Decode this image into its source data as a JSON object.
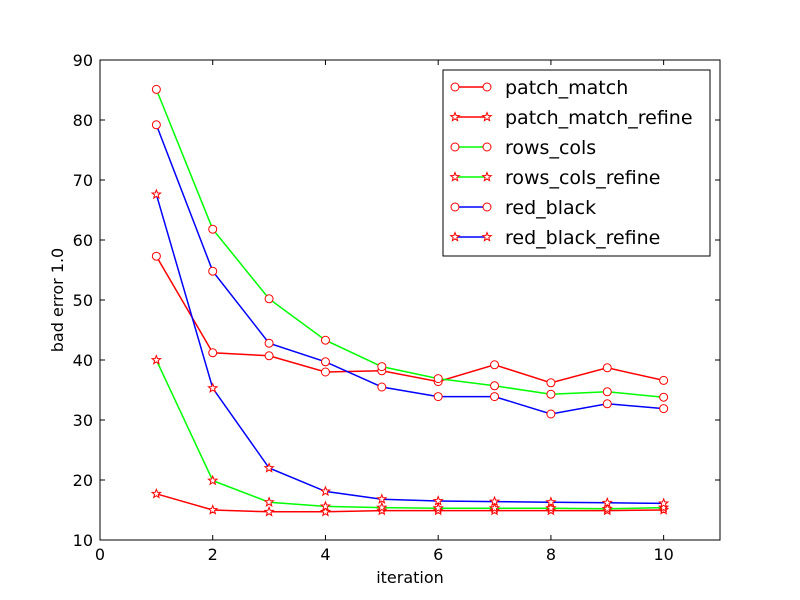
{
  "chart_data": {
    "type": "line",
    "xlabel": "iteration",
    "ylabel": "bad error 1.0",
    "xlim": [
      0,
      11
    ],
    "ylim": [
      10,
      90
    ],
    "xticks": [
      0,
      2,
      4,
      6,
      8,
      10
    ],
    "yticks": [
      10,
      20,
      30,
      40,
      50,
      60,
      70,
      80,
      90
    ],
    "grid": false,
    "legend_position": "top-right",
    "x": [
      1,
      2,
      3,
      4,
      5,
      6,
      7,
      8,
      9,
      10
    ],
    "series": [
      {
        "name": "patch_match",
        "color": "#ff0000",
        "marker": "circle",
        "values": [
          57.3,
          41.2,
          40.7,
          38.0,
          38.2,
          36.4,
          39.2,
          36.2,
          38.7,
          36.6
        ]
      },
      {
        "name": "patch_match_refine",
        "color": "#ff0000",
        "marker": "star",
        "values": [
          17.7,
          15.0,
          14.7,
          14.7,
          14.9,
          14.9,
          14.9,
          14.9,
          14.9,
          15.0
        ]
      },
      {
        "name": "rows_cols",
        "color": "#00ff00",
        "marker": "circle",
        "values": [
          85.1,
          61.8,
          50.2,
          43.3,
          38.9,
          36.9,
          35.7,
          34.3,
          34.7,
          33.8
        ]
      },
      {
        "name": "rows_cols_refine",
        "color": "#00ff00",
        "marker": "star",
        "values": [
          40.0,
          19.9,
          16.3,
          15.6,
          15.4,
          15.3,
          15.3,
          15.3,
          15.2,
          15.4
        ]
      },
      {
        "name": "red_black",
        "color": "#0000ff",
        "marker": "circle",
        "values": [
          79.2,
          54.8,
          42.8,
          39.7,
          35.5,
          33.9,
          33.9,
          31.0,
          32.7,
          31.9
        ]
      },
      {
        "name": "red_black_refine",
        "color": "#0000ff",
        "marker": "star",
        "values": [
          67.6,
          35.3,
          22.0,
          18.1,
          16.8,
          16.5,
          16.4,
          16.3,
          16.2,
          16.1
        ]
      }
    ],
    "marker_edge_color": "#ff0000",
    "marker_face_color": "#ffffff"
  }
}
